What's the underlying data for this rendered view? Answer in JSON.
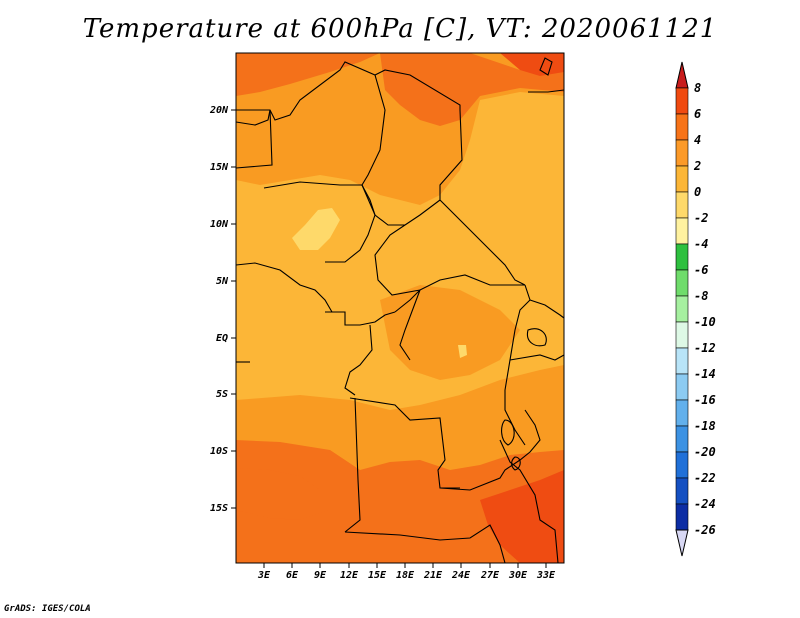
{
  "title": "Temperature at 600hPa [C], VT: 2020061121",
  "credit": "GrADS: IGES/COLA",
  "map": {
    "variable": "Temperature",
    "level": "600hPa",
    "units": "C",
    "valid_time": "2020061121",
    "region": "Central Africa",
    "lon_ticks": [
      "3E",
      "6E",
      "9E",
      "12E",
      "15E",
      "18E",
      "21E",
      "24E",
      "27E",
      "30E",
      "33E"
    ],
    "lat_ticks": [
      "20N",
      "15N",
      "10N",
      "5N",
      "EQ",
      "5S",
      "10S",
      "15S"
    ]
  },
  "colorbar": {
    "levels": [
      "8",
      "6",
      "4",
      "2",
      "0",
      "-2",
      "-4",
      "-6",
      "-8",
      "-10",
      "-12",
      "-14",
      "-16",
      "-18",
      "-20",
      "-22",
      "-24",
      "-26"
    ],
    "colors": [
      "#e01f1f",
      "#f04a10",
      "#f77318",
      "#fc9a28",
      "#fcb637",
      "#fed96a",
      "#fff2a0",
      "#2ec03f",
      "#6fdc6b",
      "#a6f0a0",
      "#def9e6",
      "#b8e4f8",
      "#8ccbf2",
      "#62b0ec",
      "#3c92e3",
      "#2070d8",
      "#1450c2",
      "#0c2da4",
      "#081a6e"
    ],
    "top_color": "#c81c1c",
    "bottom_color": "#d8d8f4"
  },
  "colors": {
    "warm_base": "#fcb637",
    "orange": "#f99b22",
    "dark_orange": "#f4711a",
    "red_orange": "#ef4c12",
    "pale": "#fed96a",
    "border": "#000000"
  }
}
